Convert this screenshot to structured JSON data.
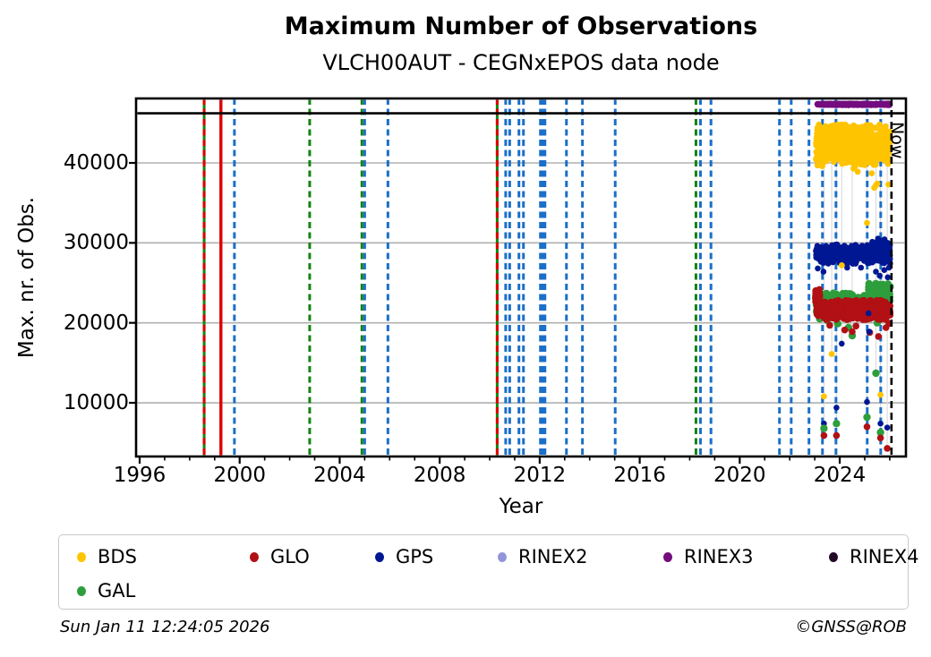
{
  "figure": {
    "title": "Maximum Number of Observations",
    "subtitle": "VLCH00AUT - CEGNxEPOS data node"
  },
  "axes": {
    "xlabel": "Year",
    "ylabel": "Max. nr. of Obs."
  },
  "footer": {
    "timestamp": "Sun Jan 11 12:24:05 2026",
    "credit": "©GNSS@ROB"
  },
  "legend": {
    "items": [
      {
        "label": "BDS",
        "color": "#FFC400"
      },
      {
        "label": "GLO",
        "color": "#B11014"
      },
      {
        "label": "GPS",
        "color": "#001793"
      },
      {
        "label": "RINEX2",
        "color": "#9395D9"
      },
      {
        "label": "RINEX3",
        "color": "#740B7E"
      },
      {
        "label": "RINEX4",
        "color": "#250A28"
      },
      {
        "label": "GAL",
        "color": "#2E9E3C"
      }
    ]
  },
  "chart_data": {
    "type": "scatter",
    "title": "Maximum Number of Observations",
    "subtitle": "VLCH00AUT - CEGNxEPOS data node",
    "xlabel": "Year",
    "ylabel": "Max. nr. of Obs.",
    "xlim": [
      1995.86,
      2026.65
    ],
    "ylim": [
      3300,
      48060
    ],
    "x_ticks": [
      1996,
      2000,
      2004,
      2008,
      2012,
      2016,
      2020,
      2024
    ],
    "x_minor_tick_step": 1,
    "y_ticks": [
      10000,
      20000,
      30000,
      40000
    ],
    "grid": {
      "horizontal_major": true,
      "color": "#b0b0b0"
    },
    "max_line": {
      "value": 46200,
      "color": "#000000",
      "style": "solid"
    },
    "now_line": {
      "year": 2026.07,
      "label": "Now",
      "color": "#000000",
      "style": "dashed"
    },
    "line_colors": {
      "blue": "#1B6FC8",
      "green": "#128312",
      "red": "#DE0000"
    },
    "event_lines": [
      {
        "year": 1998.58,
        "color": "green",
        "style": "solid"
      },
      {
        "year": 1998.58,
        "color": "red",
        "style": "dashed"
      },
      {
        "year": 1999.25,
        "color": "red",
        "style": "solid"
      },
      {
        "year": 1999.79,
        "color": "blue",
        "style": "dashed"
      },
      {
        "year": 2002.8,
        "color": "green",
        "style": "dashed"
      },
      {
        "year": 2004.89,
        "color": "green",
        "style": "dashed"
      },
      {
        "year": 2005.0,
        "color": "blue",
        "style": "dashed"
      },
      {
        "year": 2005.93,
        "color": "blue",
        "style": "dashed"
      },
      {
        "year": 2010.3,
        "color": "green",
        "style": "solid"
      },
      {
        "year": 2010.3,
        "color": "red",
        "style": "dashed"
      },
      {
        "year": 2010.64,
        "color": "blue",
        "style": "dashed"
      },
      {
        "year": 2010.8,
        "color": "blue",
        "style": "dashed"
      },
      {
        "year": 2011.17,
        "color": "blue",
        "style": "dashed"
      },
      {
        "year": 2011.35,
        "color": "blue",
        "style": "dashed"
      },
      {
        "year": 2012.03,
        "color": "blue",
        "style": "dashed"
      },
      {
        "year": 2012.12,
        "color": "blue",
        "style": "dashed"
      },
      {
        "year": 2012.21,
        "color": "blue",
        "style": "dashed"
      },
      {
        "year": 2013.07,
        "color": "blue",
        "style": "dashed"
      },
      {
        "year": 2013.71,
        "color": "blue",
        "style": "dashed"
      },
      {
        "year": 2015.02,
        "color": "blue",
        "style": "dashed"
      },
      {
        "year": 2018.25,
        "color": "green",
        "style": "dashed"
      },
      {
        "year": 2018.43,
        "color": "blue",
        "style": "dashed"
      },
      {
        "year": 2018.85,
        "color": "blue",
        "style": "dashed"
      },
      {
        "year": 2021.59,
        "color": "blue",
        "style": "dashed"
      },
      {
        "year": 2022.06,
        "color": "blue",
        "style": "dashed"
      },
      {
        "year": 2022.77,
        "color": "blue",
        "style": "dashed"
      },
      {
        "year": 2023.31,
        "color": "blue",
        "style": "dashed"
      },
      {
        "year": 2023.85,
        "color": "blue",
        "style": "dashed"
      },
      {
        "year": 2025.1,
        "color": "blue",
        "style": "dashed"
      },
      {
        "year": 2025.64,
        "color": "blue",
        "style": "dashed"
      }
    ],
    "series": [
      {
        "name": "GAL",
        "color": "#2E9E3C",
        "marker_radius": 4.2,
        "n_total": 670,
        "bands": [
          {
            "x": [
              2023.05,
              2025.3
            ],
            "y": [
              20900,
              23700
            ],
            "n": 450
          },
          {
            "x": [
              2025.15,
              2026.02
            ],
            "y": [
              22400,
              24900
            ],
            "n": 220
          }
        ],
        "outliers": [
          [
            2023.2,
            20500
          ],
          [
            2023.5,
            20300
          ],
          [
            2023.92,
            19900
          ],
          [
            2024.35,
            19400
          ],
          [
            2024.9,
            20600
          ],
          [
            2025.5,
            20000
          ]
        ]
      },
      {
        "name": "GLO",
        "color": "#B11014",
        "marker_radius": 3.8,
        "n_total": 690,
        "bands": [
          {
            "x": [
              2023.03,
              2023.2
            ],
            "y": [
              22600,
              24300
            ],
            "n": 60
          },
          {
            "x": [
              2023.08,
              2026.02
            ],
            "y": [
              20400,
              22800
            ],
            "n": 630
          }
        ],
        "outliers": [
          [
            2023.6,
            19700
          ],
          [
            2024.2,
            19100
          ],
          [
            2024.65,
            19600
          ],
          [
            2025.2,
            18800
          ],
          [
            2025.55,
            18300
          ],
          [
            2025.85,
            19400
          ],
          [
            2025.97,
            19900
          ]
        ]
      },
      {
        "name": "GPS",
        "color": "#001793",
        "marker_radius": 3.3,
        "n_total": 720,
        "bands": [
          {
            "x": [
              2023.05,
              2026.02
            ],
            "y": [
              27400,
              29800
            ],
            "n": 600
          },
          {
            "x": [
              2025.3,
              2026.0
            ],
            "y": [
              28300,
              30600
            ],
            "n": 120
          }
        ],
        "outliers": [
          [
            2023.12,
            26800
          ],
          [
            2023.35,
            26400
          ],
          [
            2024.3,
            26900
          ],
          [
            2024.85,
            26900
          ],
          [
            2025.15,
            21200
          ],
          [
            2025.18,
            18900
          ],
          [
            2025.45,
            26400
          ],
          [
            2025.6,
            25900
          ],
          [
            2025.78,
            26600
          ],
          [
            2025.92,
            25700
          ],
          [
            2025.97,
            26900
          ]
        ]
      },
      {
        "name": "BDS",
        "color": "#FFC400",
        "marker_radius": 3.4,
        "n_total": 900,
        "bands": [
          {
            "x": [
              2023.05,
              2026.02
            ],
            "y": [
              39700,
              44800
            ],
            "n": 900
          }
        ],
        "outliers": [
          [
            2023.3,
            39600
          ],
          [
            2024.55,
            39300
          ],
          [
            2024.62,
            39600
          ],
          [
            2024.72,
            38900
          ],
          [
            2025.28,
            38700
          ],
          [
            2025.38,
            36900
          ],
          [
            2025.5,
            37400
          ],
          [
            2025.95,
            37300
          ]
        ]
      },
      {
        "name": "RINEX2",
        "color": "#9395D9",
        "marker_radius": 3.4,
        "n_total": 0,
        "bands": [],
        "outliers": []
      },
      {
        "name": "RINEX3",
        "color": "#740B7E",
        "marker_radius": 3.5,
        "n_total": 300,
        "bands": [
          {
            "x": [
              2023.1,
              2026.0
            ],
            "y": [
              47230,
              47400
            ],
            "n": 300
          }
        ],
        "outliers": []
      },
      {
        "name": "RINEX4",
        "color": "#250A28",
        "marker_radius": 3.4,
        "n_total": 0,
        "bands": [],
        "outliers": []
      }
    ],
    "dropouts": [
      {
        "year": 2023.37,
        "values": {
          "BDS": 10800,
          "GPS": 7400,
          "GAL": 6800,
          "GLO": 5900
        }
      },
      {
        "year": 2023.68,
        "values": {
          "BDS": 16100
        }
      },
      {
        "year": 2023.87,
        "values": {
          "GPS": 9400,
          "GAL": 7400,
          "GLO": 5900
        }
      },
      {
        "year": 2024.08,
        "values": {
          "BDS": 27200,
          "GPS": 17400
        }
      },
      {
        "year": 2024.5,
        "values": {
          "GAL": 18400,
          "GLO": 18900
        }
      },
      {
        "year": 2025.09,
        "values": {
          "BDS": 32500,
          "GPS": 10100,
          "GAL": 8200,
          "GLO": 7000
        }
      },
      {
        "year": 2025.45,
        "values": {
          "BDS": 37200,
          "GAL": 13700
        }
      },
      {
        "year": 2025.63,
        "values": {
          "BDS": 11000,
          "GPS": 7400,
          "GAL": 6300,
          "GLO": 5600
        }
      },
      {
        "year": 2025.9,
        "values": {
          "GPS": 6900,
          "GLO": 4300
        }
      }
    ]
  }
}
